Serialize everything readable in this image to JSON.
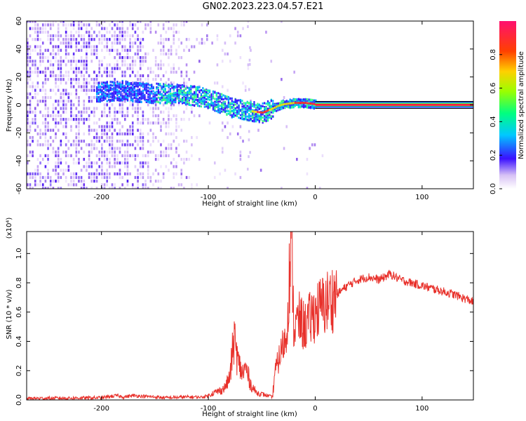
{
  "figure_title": "GN02.2023.223.04.57.E21",
  "chart_data": [
    {
      "type": "heatmap",
      "xlabel": "Height of straight line (km)",
      "ylabel": "Frequency (Hz)",
      "xlim": [
        -270,
        148
      ],
      "ylim": [
        -60,
        60
      ],
      "xticks": [
        -200,
        -100,
        0,
        100
      ],
      "yticks": [
        60,
        40,
        20,
        0,
        -20,
        -40,
        -60
      ],
      "colorbar": {
        "label": "Normalized spectral amplitude",
        "range": [
          0,
          1
        ],
        "ticks": [
          0.0,
          0.2,
          0.4,
          0.6,
          0.8
        ]
      },
      "ridge": {
        "x": [
          -200,
          -180,
          -160,
          -150,
          -120,
          -100,
          -80,
          -60,
          -50,
          -40,
          -35,
          -30,
          -20,
          -10,
          0,
          148
        ],
        "y": [
          9,
          10,
          8,
          8,
          7,
          4,
          -2,
          -5,
          -6,
          -3,
          -1,
          0,
          1,
          1,
          0,
          0
        ]
      }
    },
    {
      "type": "line",
      "xlabel": "Height of straight line (km)",
      "ylabel": "SNR (10 * v/v)",
      "yscale_label": "(x10⁴)",
      "xlim": [
        -270,
        148
      ],
      "ylim": [
        0,
        1.15
      ],
      "xticks": [
        -200,
        -100,
        0,
        100
      ],
      "yticks": [
        0.0,
        0.2,
        0.4,
        0.6,
        0.8,
        1.0
      ],
      "series": [
        {
          "color": "#e8302a",
          "x": [
            -270,
            -200,
            -185,
            -180,
            -170,
            -160,
            -150,
            -140,
            -120,
            -105,
            -100,
            -95,
            -90,
            -85,
            -80,
            -76,
            -72,
            -68,
            -65,
            -60,
            -55,
            -50,
            -45,
            -40,
            -38,
            -34,
            -30,
            -27,
            -25,
            -22,
            -20,
            -15,
            -10,
            -5,
            0,
            10,
            20,
            30,
            40,
            50,
            60,
            70,
            80,
            90,
            100,
            110,
            120,
            130,
            148
          ],
          "y": [
            0.01,
            0.015,
            0.03,
            0.02,
            0.03,
            0.025,
            0.02,
            0.015,
            0.02,
            0.02,
            0.03,
            0.05,
            0.06,
            0.08,
            0.15,
            0.42,
            0.25,
            0.18,
            0.22,
            0.1,
            0.05,
            0.04,
            0.03,
            0.02,
            0.18,
            0.28,
            0.38,
            0.42,
            0.75,
            1.12,
            0.48,
            0.55,
            0.5,
            0.55,
            0.6,
            0.66,
            0.72,
            0.78,
            0.82,
            0.84,
            0.82,
            0.86,
            0.82,
            0.8,
            0.78,
            0.76,
            0.74,
            0.72,
            0.67
          ]
        }
      ]
    }
  ]
}
